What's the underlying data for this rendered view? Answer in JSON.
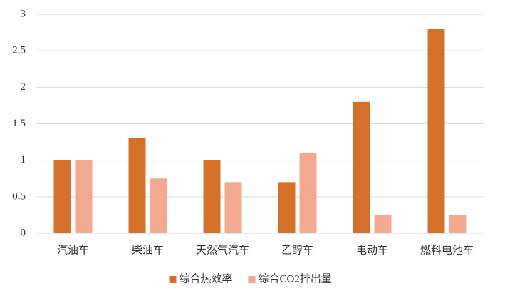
{
  "chart_data": {
    "type": "bar",
    "categories": [
      "汽油车",
      "柴油车",
      "天然气汽车",
      "乙醇车",
      "电动车",
      "燃料电池车"
    ],
    "series": [
      {
        "name": "综合热效率",
        "color": "#d4702a",
        "values": [
          1,
          1.3,
          1,
          0.7,
          1.8,
          2.8
        ]
      },
      {
        "name": "综合CO2排出量",
        "color": "#f3a98f",
        "values": [
          1,
          0.75,
          0.7,
          1.1,
          0.25,
          0.25
        ]
      }
    ],
    "ylim": [
      0,
      3
    ],
    "yticks": [
      0,
      0.5,
      1,
      1.5,
      2,
      2.5,
      3
    ],
    "grid": true,
    "legend": "bottom"
  }
}
